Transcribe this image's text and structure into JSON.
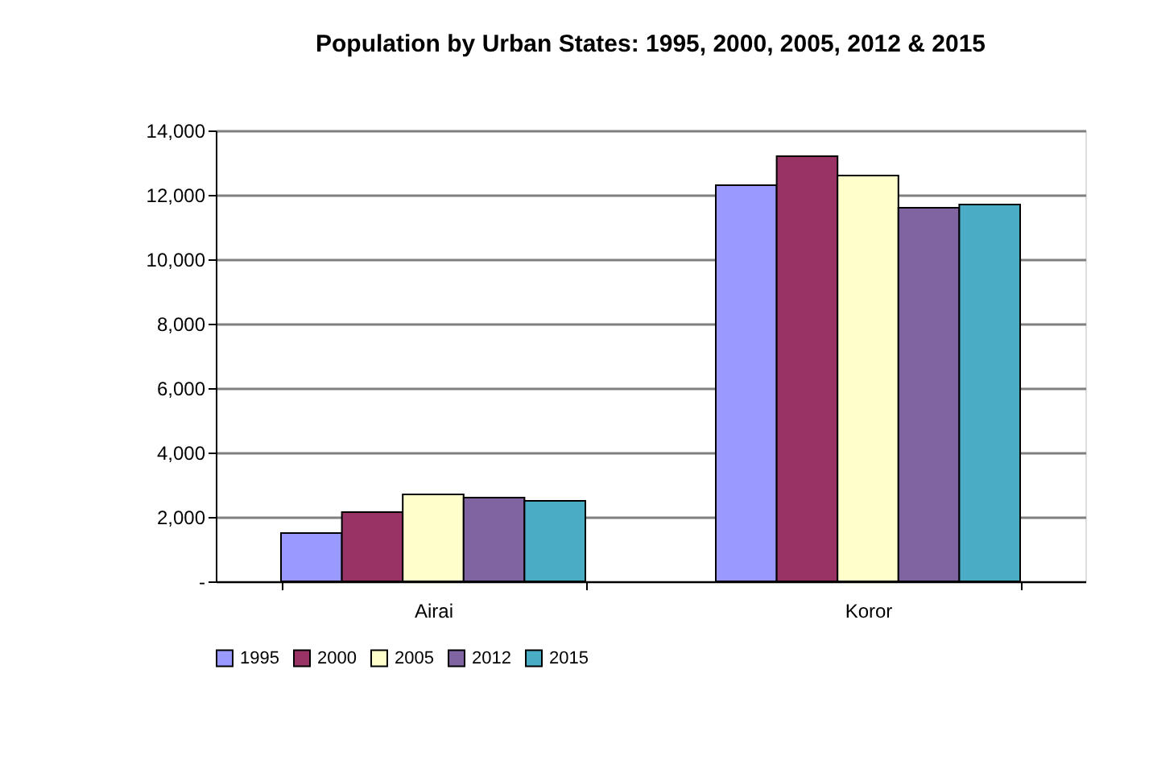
{
  "chart_data": {
    "type": "bar",
    "title": "Population by Urban States: 1995, 2000, 2005, 2012 & 2015",
    "categories": [
      "Airai",
      "Koror"
    ],
    "series": [
      {
        "name": "1995",
        "color": "#9999ff",
        "values": [
          1500,
          12300
        ]
      },
      {
        "name": "2000",
        "color": "#993366",
        "values": [
          2150,
          13200
        ]
      },
      {
        "name": "2005",
        "color": "#ffffcc",
        "values": [
          2700,
          12600
        ]
      },
      {
        "name": "2012",
        "color": "#8064a2",
        "values": [
          2600,
          11600
        ]
      },
      {
        "name": "2015",
        "color": "#4bacc6",
        "values": [
          2500,
          11700
        ]
      }
    ],
    "ylim": [
      0,
      14000
    ],
    "yticks": [
      {
        "value": 0,
        "label": "-"
      },
      {
        "value": 2000,
        "label": "2,000"
      },
      {
        "value": 4000,
        "label": "4,000"
      },
      {
        "value": 6000,
        "label": "6,000"
      },
      {
        "value": 8000,
        "label": "8,000"
      },
      {
        "value": 10000,
        "label": "10,000"
      },
      {
        "value": 12000,
        "label": "12,000"
      },
      {
        "value": 14000,
        "label": "14,000"
      }
    ],
    "grid": "y",
    "legend": "bottom"
  }
}
